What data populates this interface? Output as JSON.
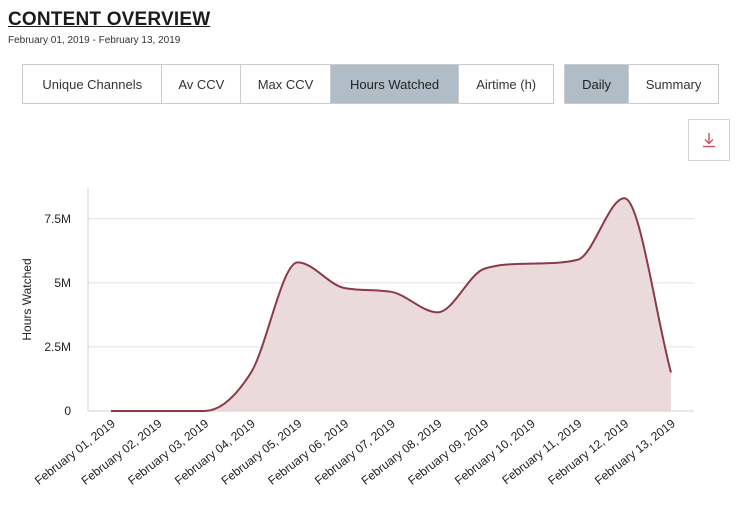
{
  "header": {
    "title": "CONTENT OVERVIEW",
    "date_range": "February 01, 2019 - February 13, 2019"
  },
  "metric_tabs": [
    {
      "label": "Unique Channels",
      "active": false
    },
    {
      "label": "Av CCV",
      "active": false
    },
    {
      "label": "Max CCV",
      "active": false
    },
    {
      "label": "Hours Watched",
      "active": true
    },
    {
      "label": "Airtime (h)",
      "active": false
    }
  ],
  "view_tabs": [
    {
      "label": "Daily",
      "active": true
    },
    {
      "label": "Summary",
      "active": false
    }
  ],
  "download": {
    "icon": "download-icon"
  },
  "colors": {
    "line": "#8b3a48",
    "fill": "#e6d3d5",
    "active_tab": "#b0bdc6",
    "grid": "#e2e2e2",
    "download_icon": "#c8505c"
  },
  "chart_data": {
    "type": "area",
    "title": "",
    "xlabel": "",
    "ylabel": "Hours Watched",
    "categories": [
      "February 01, 2019",
      "February 02, 2019",
      "February 03, 2019",
      "February 04, 2019",
      "February 05, 2019",
      "February 06, 2019",
      "February 07, 2019",
      "February 08, 2019",
      "February 09, 2019",
      "February 10, 2019",
      "February 11, 2019",
      "February 12, 2019",
      "February 13, 2019"
    ],
    "series": [
      {
        "name": "Hours Watched",
        "values": [
          0,
          0,
          0,
          1500000,
          5800000,
          4800000,
          4650000,
          3850000,
          5550000,
          5750000,
          5900000,
          8300000,
          1500000
        ]
      }
    ],
    "ylim": [
      0,
      8700000
    ],
    "yticks": [
      {
        "value": 0,
        "label": "0"
      },
      {
        "value": 2500000,
        "label": "2.5M"
      },
      {
        "value": 5000000,
        "label": "5M"
      },
      {
        "value": 7500000,
        "label": "7.5M"
      }
    ],
    "grid": true,
    "legend": "none"
  }
}
